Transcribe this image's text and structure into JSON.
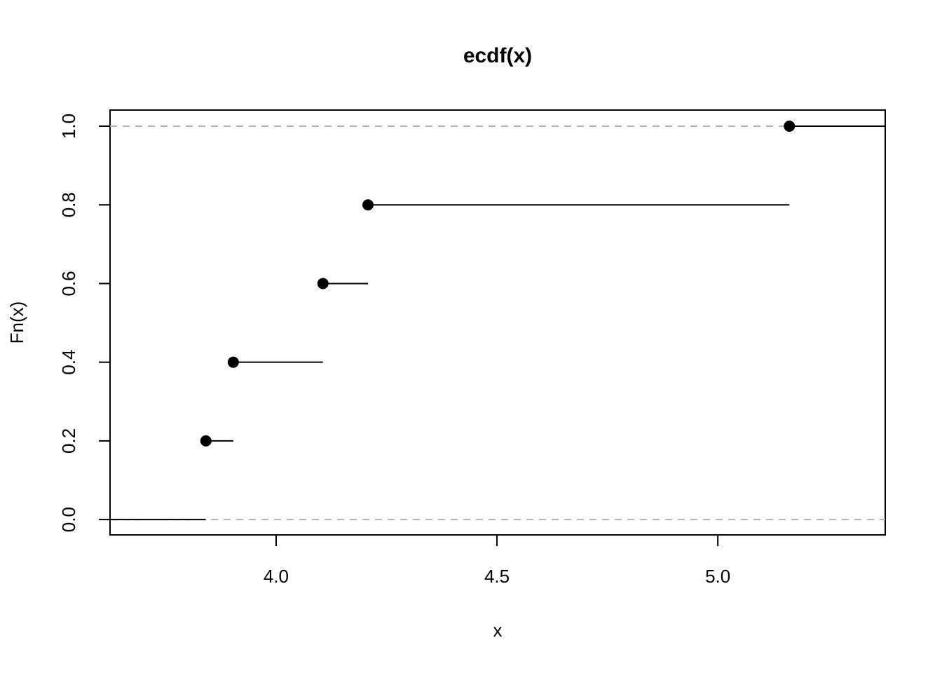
{
  "chart_data": {
    "type": "ecdf",
    "title": "ecdf(x)",
    "x_label": "x",
    "y_label": "Fn(x)",
    "x": [
      3.841,
      3.903,
      4.106,
      4.208,
      5.162
    ],
    "values": [
      0.2,
      0.4,
      0.6,
      0.8,
      1.0
    ],
    "color": "#000000",
    "xlim": [
      3.624,
      5.379
    ],
    "ylim": [
      -0.039,
      1.041
    ],
    "xticks": [
      {
        "value": 4,
        "label": "4.0"
      },
      4.5,
      {
        "value": 5,
        "label": "5.0"
      }
    ],
    "yticks": [
      {
        "value": 0,
        "label": "0.0"
      },
      0.2,
      0.4,
      0.6,
      0.8,
      {
        "value": 1,
        "label": "1.0"
      }
    ],
    "reference_lines": [
      0,
      1
    ],
    "reference_color": "#b3b3b3"
  }
}
